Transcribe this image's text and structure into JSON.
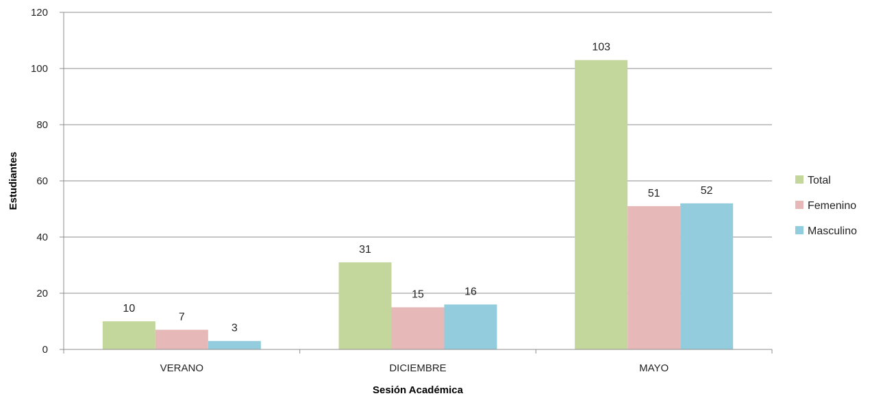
{
  "chart_data": {
    "type": "bar",
    "title": "",
    "xlabel": "Sesión Académica",
    "ylabel": "Estudiantes",
    "categories": [
      "VERANO",
      "DICIEMBRE",
      "MAYO"
    ],
    "series": [
      {
        "name": "Total",
        "color": "#c3d69b",
        "values": [
          10,
          31,
          103
        ]
      },
      {
        "name": "Femenino",
        "color": "#e6b9b8",
        "values": [
          7,
          15,
          51
        ]
      },
      {
        "name": "Masculino",
        "color": "#93cddd",
        "values": [
          3,
          16,
          52
        ]
      }
    ],
    "ylim": [
      0,
      120
    ],
    "yticks": [
      0,
      20,
      40,
      60,
      80,
      100,
      120
    ],
    "grid": true,
    "legend_position": "right",
    "data_labels": true
  }
}
